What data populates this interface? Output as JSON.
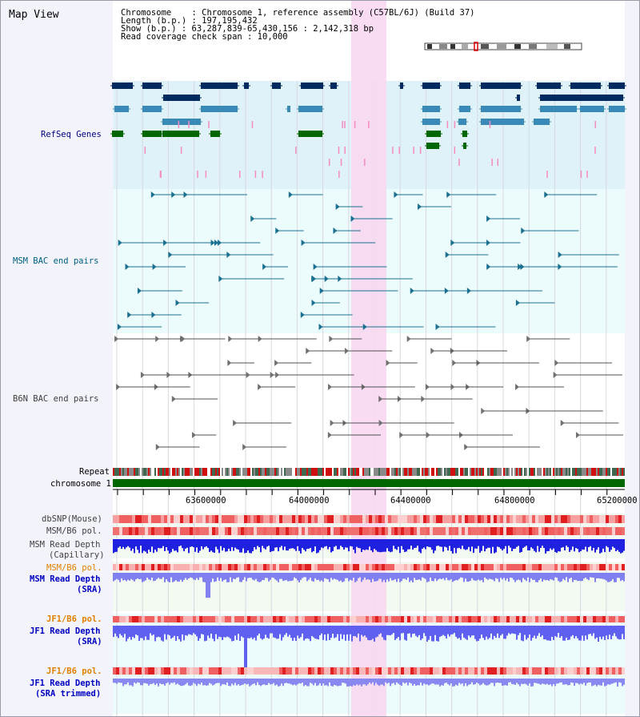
{
  "view_title": "Map View",
  "info": {
    "chromosome_line": "Chromosome    : Chromosome 1, reference assembly (C57BL/6J) (Build 37)",
    "length_line": "Length (b.p.) : 197,195,432",
    "show_line": "Show (b.p.) : 63,287,839-65,430,156 : 2,142,318 bp",
    "span_line": "Read coverage check span : 10,000"
  },
  "tracks": {
    "refseq": "RefSeq Genes",
    "msm_bac": "MSM BAC end pairs",
    "b6n_bac": "B6N BAC end pairs",
    "repeat": "Repeat",
    "chromosome": "chromosome 1",
    "dbsnp": "dbSNP(Mouse)",
    "msm_pol": "MSM/B6 pol.",
    "msm_depth_cap_1": "MSM Read Depth",
    "msm_depth_cap_2": "(Capillary)",
    "msm_pol_2": "MSM/B6 pol.",
    "msm_depth_sra_1": "MSM Read Depth",
    "msm_depth_sra_2": "(SRA)",
    "jf1_pol": "JF1/B6 pol.",
    "jf1_depth_sra_1": "JF1 Read Depth",
    "jf1_depth_sra_2": "(SRA)",
    "jf1_pol_2": "JF1/B6 pol.",
    "jf1_depth_trim_1": "JF1 Read Depth",
    "jf1_depth_trim_2": "(SRA trimmed)"
  },
  "axis_ticks": [
    "63600000",
    "64000000",
    "64400000",
    "64800000",
    "65200000"
  ],
  "colors": {
    "refseq_label": "#000080",
    "msm_label": "#006080",
    "b6n_label": "#404040",
    "msm_pol_label": "#e08000",
    "jf1_pol_label": "#e08000",
    "sra_label": "#0000c0",
    "highlight": "#f8d8f0",
    "chrom_bar": "#006600",
    "gene_dark": "#002a60",
    "gene_mid": "#3a8ab8",
    "gene_green": "#006600"
  }
}
